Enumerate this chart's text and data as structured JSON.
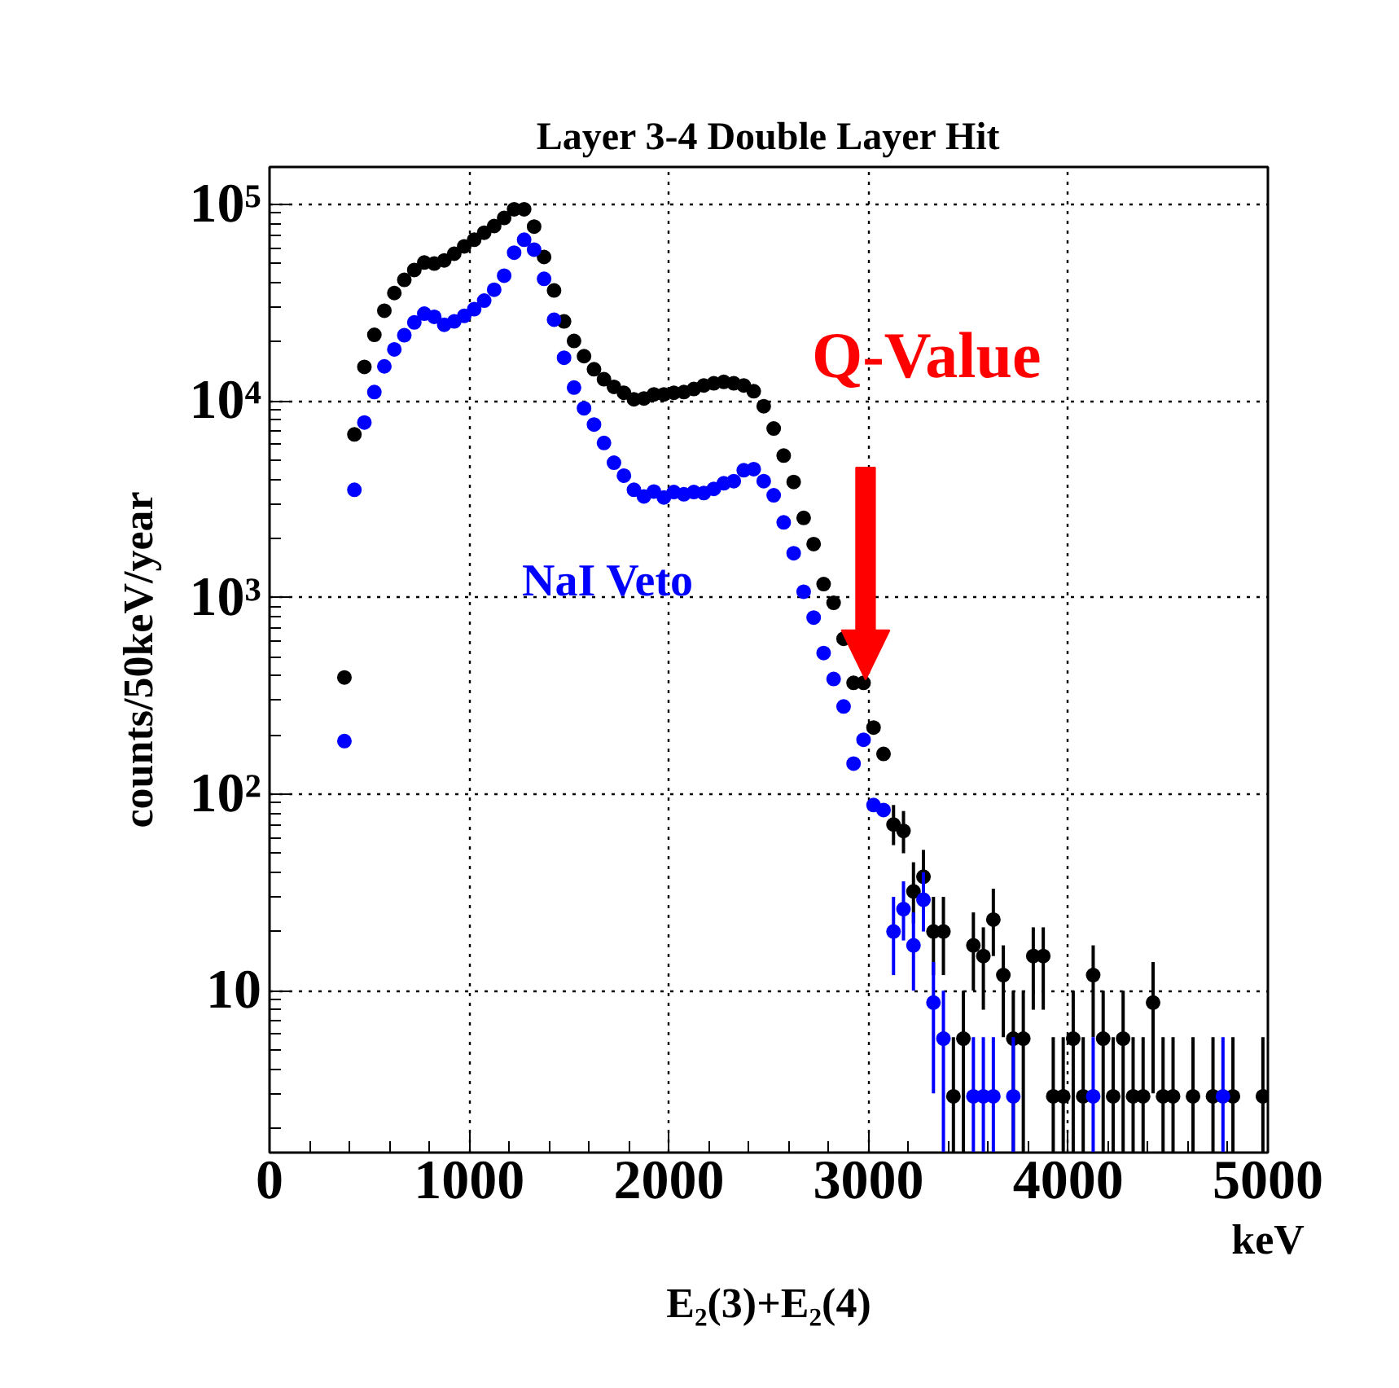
{
  "chart_data": {
    "type": "scatter",
    "title": "Layer 3-4 Double Layer Hit",
    "xlabel": "keV",
    "ylabel": "counts/50keV/year",
    "log": "y",
    "grid": true,
    "marker": "circle",
    "legend": false,
    "xlim": [
      0,
      5000
    ],
    "ylim": [
      1.5,
      155000
    ],
    "xticks": [
      0,
      1000,
      2000,
      3000,
      4000,
      5000
    ],
    "yticks": [
      {
        "value": 10,
        "label": "10"
      },
      {
        "value": 100,
        "label": "10²"
      },
      {
        "value": 1000,
        "label": "10³"
      },
      {
        "value": 10000,
        "label": "10⁴"
      },
      {
        "value": 100000,
        "label": "10⁵"
      }
    ],
    "annotations": [
      "Q-Value",
      "E₂(3)+E₂(4)"
    ],
    "series": [
      {
        "color": "#000000",
        "x": [
          375,
          425,
          475,
          525,
          575,
          625,
          675,
          725,
          775,
          825,
          875,
          925,
          975,
          1025,
          1075,
          1125,
          1175,
          1225,
          1275,
          1325,
          1375,
          1425,
          1475,
          1525,
          1575,
          1625,
          1675,
          1725,
          1775,
          1825,
          1875,
          1925,
          1975,
          2025,
          2075,
          2125,
          2175,
          2225,
          2275,
          2325,
          2375,
          2425,
          2475,
          2525,
          2575,
          2625,
          2675,
          2725,
          2775,
          2825,
          2875,
          2925,
          2975,
          3025,
          3075,
          3125,
          3175,
          3225,
          3275,
          3325,
          3375,
          3425,
          3475,
          3525,
          3575,
          3625,
          3675,
          3725,
          3775,
          3825,
          3875,
          3925,
          3975,
          4025,
          4075,
          4125,
          4175,
          4225,
          4275,
          4325,
          4375,
          4425,
          4475,
          4525,
          4625,
          4725,
          4825,
          4975
        ],
        "values": [
          392,
          6760,
          14900,
          21700,
          28800,
          35400,
          41300,
          46400,
          50600,
          50000,
          51900,
          56100,
          61200,
          66100,
          71800,
          77600,
          85300,
          94400,
          94400,
          77100,
          54000,
          36500,
          25400,
          20200,
          16900,
          14500,
          12900,
          11800,
          11000,
          10200,
          10300,
          10800,
          10800,
          11000,
          11100,
          11500,
          12000,
          12300,
          12500,
          12300,
          12000,
          11200,
          9400,
          7240,
          5270,
          3870,
          2540,
          1870,
          1170,
          940,
          617,
          368,
          368,
          218,
          160,
          70,
          65,
          32,
          38,
          20,
          20,
          2.9,
          5.7,
          17,
          15,
          23,
          12,
          5.7,
          5.7,
          15,
          15,
          2.9,
          2.9,
          5.7,
          2.9,
          12,
          5.7,
          2.9,
          5.7,
          2.9,
          2.9,
          8.7,
          2.9,
          2.9,
          2.9,
          2.9,
          2.9,
          2.9
        ],
        "errors": [
          null,
          null,
          null,
          null,
          null,
          null,
          null,
          null,
          null,
          null,
          null,
          null,
          null,
          null,
          null,
          null,
          null,
          null,
          null,
          null,
          null,
          null,
          null,
          null,
          null,
          null,
          null,
          null,
          null,
          null,
          null,
          null,
          null,
          null,
          null,
          null,
          null,
          null,
          null,
          null,
          null,
          null,
          null,
          null,
          null,
          null,
          null,
          null,
          null,
          null,
          null,
          null,
          null,
          null,
          null,
          [
            55,
            88
          ],
          [
            50,
            82
          ],
          [
            22,
            45
          ],
          [
            27,
            52
          ],
          [
            12,
            30
          ],
          [
            12,
            30
          ],
          [
            1.5,
            5.8
          ],
          [
            1.5,
            10
          ],
          [
            10,
            25
          ],
          [
            8,
            21
          ],
          [
            15,
            33
          ],
          [
            5.8,
            17
          ],
          [
            1.5,
            10
          ],
          [
            1.5,
            10
          ],
          [
            8,
            21
          ],
          [
            8,
            21
          ],
          [
            1.5,
            5.8
          ],
          [
            1.5,
            5.8
          ],
          [
            1.5,
            10
          ],
          [
            1.5,
            5.8
          ],
          [
            5.8,
            17
          ],
          [
            1.5,
            10
          ],
          [
            1.5,
            5.8
          ],
          [
            1.5,
            10
          ],
          [
            1.5,
            5.8
          ],
          [
            1.5,
            5.8
          ],
          [
            3,
            14
          ],
          [
            1.5,
            5.8
          ],
          [
            1.5,
            5.8
          ],
          [
            1.5,
            5.8
          ],
          [
            1.5,
            5.8
          ],
          [
            1.5,
            5.8
          ],
          [
            1.5,
            5.8
          ]
        ]
      },
      {
        "name": "NaI Veto",
        "color": "#0000ff",
        "x": [
          375,
          425,
          475,
          525,
          575,
          625,
          675,
          725,
          775,
          825,
          875,
          925,
          975,
          1025,
          1075,
          1125,
          1175,
          1225,
          1275,
          1325,
          1375,
          1425,
          1475,
          1525,
          1575,
          1625,
          1675,
          1725,
          1775,
          1825,
          1875,
          1925,
          1975,
          2025,
          2075,
          2125,
          2175,
          2225,
          2275,
          2325,
          2375,
          2425,
          2475,
          2525,
          2575,
          2625,
          2675,
          2725,
          2775,
          2825,
          2875,
          2925,
          2975,
          3025,
          3075,
          3125,
          3175,
          3225,
          3275,
          3325,
          3375,
          3525,
          3575,
          3625,
          3725,
          4125,
          4775
        ],
        "values": [
          186,
          3530,
          7770,
          11100,
          15000,
          18300,
          21600,
          25100,
          27800,
          26800,
          24400,
          25400,
          27100,
          29300,
          32400,
          36800,
          43400,
          56800,
          66100,
          58900,
          41800,
          25900,
          16600,
          11700,
          9180,
          7590,
          6110,
          4850,
          4170,
          3530,
          3270,
          3460,
          3230,
          3440,
          3350,
          3440,
          3400,
          3570,
          3810,
          3910,
          4440,
          4500,
          3910,
          3310,
          2410,
          1680,
          1070,
          791,
          522,
          385,
          279,
          143,
          189,
          88,
          83,
          20,
          26,
          17,
          29,
          8.7,
          5.7,
          2.9,
          2.9,
          2.9,
          2.9,
          2.9,
          2.9
        ],
        "errors": [
          null,
          null,
          null,
          null,
          null,
          null,
          null,
          null,
          null,
          null,
          null,
          null,
          null,
          null,
          null,
          null,
          null,
          null,
          null,
          null,
          null,
          null,
          null,
          null,
          null,
          null,
          null,
          null,
          null,
          null,
          null,
          null,
          null,
          null,
          null,
          null,
          null,
          null,
          null,
          null,
          null,
          null,
          null,
          null,
          null,
          null,
          null,
          null,
          null,
          null,
          null,
          null,
          null,
          null,
          null,
          [
            12,
            30
          ],
          [
            18,
            36
          ],
          [
            10,
            25
          ],
          [
            20,
            40
          ],
          [
            3,
            14
          ],
          [
            1.5,
            10
          ],
          [
            1.5,
            5.8
          ],
          [
            1.5,
            5.8
          ],
          [
            1.5,
            5.8
          ],
          [
            1.5,
            5.8
          ],
          [
            1.5,
            5.8
          ],
          [
            1.5,
            5.8
          ]
        ]
      }
    ]
  }
}
